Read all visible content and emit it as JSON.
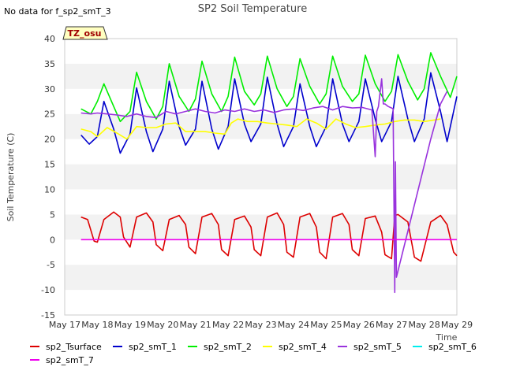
{
  "note": "No data for f_sp2_smT_3",
  "badge": "TZ_osu",
  "chart_data": {
    "type": "line",
    "title": "SP2 Soil Temperature",
    "xlabel": "Time",
    "ylabel": "Soil Temperature (C)",
    "ylim": [
      -15,
      40
    ],
    "yticks": [
      -15,
      -10,
      -5,
      0,
      5,
      10,
      15,
      20,
      25,
      30,
      35,
      40
    ],
    "xlim": [
      0,
      12
    ],
    "xtick_labels": [
      "May 17",
      "May 18",
      "May 19",
      "May 20",
      "May 21",
      "May 22",
      "May 23",
      "May 24",
      "May 25",
      "May 26",
      "May 27",
      "May 28",
      "May 29"
    ],
    "grid": "alternating horizontal bands",
    "legend_position": "bottom",
    "x_units": "days since May 17 00:00",
    "series": [
      {
        "name": "sp2_Tsurface",
        "color": "#dd0000",
        "x": [
          0.5,
          0.7,
          0.9,
          1.0,
          1.2,
          1.5,
          1.7,
          1.8,
          2.0,
          2.2,
          2.5,
          2.7,
          2.8,
          3.0,
          3.2,
          3.5,
          3.7,
          3.8,
          4.0,
          4.2,
          4.5,
          4.7,
          4.8,
          5.0,
          5.2,
          5.5,
          5.7,
          5.8,
          6.0,
          6.2,
          6.5,
          6.7,
          6.8,
          7.0,
          7.2,
          7.5,
          7.7,
          7.8,
          8.0,
          8.2,
          8.5,
          8.7,
          8.8,
          9.0,
          9.2,
          9.5,
          9.7,
          9.8,
          10.0,
          10.1,
          10.2,
          10.5,
          10.7,
          10.9,
          11.2,
          11.5,
          11.7,
          11.9,
          12.0
        ],
        "y": [
          4.5,
          4.0,
          -0.3,
          -0.5,
          4.0,
          5.5,
          4.5,
          0.5,
          -1.5,
          4.5,
          5.3,
          3.5,
          -1.0,
          -2.2,
          4.0,
          4.8,
          3.0,
          -1.5,
          -2.8,
          4.5,
          5.2,
          3.0,
          -2.0,
          -3.2,
          4.0,
          4.7,
          2.5,
          -2.0,
          -3.2,
          4.5,
          5.3,
          3.0,
          -2.5,
          -3.5,
          4.5,
          5.2,
          2.5,
          -2.5,
          -3.8,
          4.5,
          5.2,
          3.0,
          -2.0,
          -3.2,
          4.2,
          4.7,
          1.5,
          -3.0,
          -3.8,
          4.8,
          5.0,
          3.5,
          -3.5,
          -4.3,
          3.5,
          4.8,
          3.0,
          -2.5,
          -3.2
        ]
      },
      {
        "name": "sp2_smT_1",
        "color": "#0000cc",
        "x": [
          0.5,
          0.75,
          1.0,
          1.2,
          1.5,
          1.7,
          2.0,
          2.2,
          2.5,
          2.7,
          3.0,
          3.2,
          3.5,
          3.7,
          4.0,
          4.2,
          4.5,
          4.7,
          5.0,
          5.2,
          5.5,
          5.7,
          6.0,
          6.2,
          6.5,
          6.7,
          7.0,
          7.2,
          7.5,
          7.7,
          8.0,
          8.2,
          8.5,
          8.7,
          9.0,
          9.2,
          9.5,
          9.7,
          10.0,
          10.2,
          10.5,
          10.7,
          11.0,
          11.2,
          11.5,
          11.7,
          12.0
        ],
        "y": [
          20.8,
          19.0,
          20.5,
          27.5,
          22.0,
          17.2,
          21.0,
          30.2,
          21.5,
          17.5,
          22.0,
          31.5,
          22.5,
          18.8,
          22.0,
          31.5,
          22.0,
          18.0,
          22.5,
          32.0,
          23.0,
          19.5,
          23.0,
          32.3,
          23.0,
          18.5,
          22.5,
          31.0,
          22.5,
          18.5,
          22.5,
          32.0,
          23.0,
          19.5,
          23.5,
          32.0,
          24.0,
          19.5,
          23.5,
          32.5,
          24.0,
          19.5,
          24.0,
          33.2,
          25.5,
          19.5,
          28.5
        ]
      },
      {
        "name": "sp2_smT_2",
        "color": "#00ee00",
        "x": [
          0.5,
          0.8,
          1.0,
          1.2,
          1.5,
          1.7,
          2.0,
          2.2,
          2.5,
          2.8,
          3.0,
          3.2,
          3.5,
          3.8,
          4.0,
          4.2,
          4.5,
          4.8,
          5.0,
          5.2,
          5.5,
          5.8,
          6.0,
          6.2,
          6.5,
          6.8,
          7.0,
          7.2,
          7.5,
          7.8,
          8.0,
          8.2,
          8.5,
          8.8,
          9.0,
          9.2,
          9.5,
          9.8,
          10.0,
          10.2,
          10.5,
          10.8,
          11.0,
          11.2,
          11.5,
          11.8,
          12.0
        ],
        "y": [
          26.0,
          25.0,
          27.5,
          31.0,
          26.5,
          23.5,
          25.5,
          33.3,
          27.5,
          24.0,
          26.5,
          35.0,
          28.5,
          25.5,
          28.0,
          35.5,
          29.0,
          25.5,
          28.5,
          36.3,
          29.5,
          26.8,
          29.0,
          36.5,
          30.0,
          26.5,
          28.5,
          36.0,
          30.5,
          27.0,
          29.0,
          36.5,
          30.5,
          27.5,
          29.0,
          36.7,
          31.0,
          27.5,
          29.5,
          36.8,
          31.5,
          27.8,
          30.0,
          37.2,
          32.5,
          28.3,
          32.5
        ]
      },
      {
        "name": "sp2_smT_4",
        "color": "#ffff00",
        "x": [
          0.5,
          0.8,
          1.0,
          1.3,
          1.6,
          1.9,
          2.2,
          2.5,
          2.8,
          3.1,
          3.4,
          3.7,
          4.0,
          4.3,
          4.6,
          4.9,
          5.1,
          5.3,
          5.6,
          5.9,
          6.2,
          6.5,
          6.8,
          7.1,
          7.4,
          7.7,
          8.0,
          8.3,
          8.6,
          8.9,
          9.2,
          9.5,
          9.8,
          10.1,
          10.4,
          10.7,
          11.0,
          11.3,
          11.5
        ],
        "y": [
          22.0,
          21.5,
          20.5,
          22.3,
          21.2,
          20.0,
          22.5,
          22.3,
          22.3,
          23.0,
          23.2,
          21.5,
          21.5,
          21.5,
          21.2,
          21.0,
          23.2,
          24.0,
          23.5,
          23.5,
          23.2,
          23.0,
          22.8,
          22.5,
          24.0,
          23.2,
          22.0,
          24.0,
          23.0,
          22.3,
          22.5,
          22.8,
          23.0,
          23.5,
          23.8,
          23.8,
          23.5,
          23.8,
          24.0
        ]
      },
      {
        "name": "sp2_smT_5",
        "color": "#9933dd",
        "x": [
          0.5,
          0.8,
          1.0,
          1.3,
          1.6,
          1.9,
          2.2,
          2.5,
          2.8,
          3.1,
          3.4,
          3.7,
          4.0,
          4.3,
          4.6,
          4.9,
          5.2,
          5.5,
          5.8,
          6.1,
          6.4,
          6.7,
          7.0,
          7.3,
          7.6,
          7.9,
          8.2,
          8.5,
          8.8,
          9.1,
          9.4,
          9.5,
          9.55,
          9.6,
          9.7,
          9.75,
          9.8,
          9.9,
          10.0,
          10.05,
          10.1,
          10.12,
          10.15,
          11.2,
          11.5,
          11.7
        ],
        "y": [
          25.2,
          25.0,
          25.2,
          25.0,
          24.8,
          24.5,
          25.0,
          24.5,
          24.3,
          25.5,
          25.0,
          25.5,
          26.0,
          25.5,
          25.2,
          25.8,
          25.5,
          26.0,
          25.5,
          25.8,
          25.3,
          25.8,
          26.0,
          25.7,
          26.2,
          26.5,
          25.8,
          26.5,
          26.2,
          26.3,
          25.8,
          16.5,
          25.5,
          26.5,
          32.0,
          27.0,
          27.0,
          26.5,
          26.2,
          26.0,
          -10.5,
          15.5,
          -7.5,
          20.0,
          27.0,
          29.5
        ]
      },
      {
        "name": "sp2_smT_6",
        "color": "#00eeee",
        "x": [],
        "y": []
      },
      {
        "name": "sp2_smT_7",
        "color": "#ee00ee",
        "x": [
          0.5,
          12.0
        ],
        "y": [
          0,
          0
        ]
      }
    ]
  }
}
